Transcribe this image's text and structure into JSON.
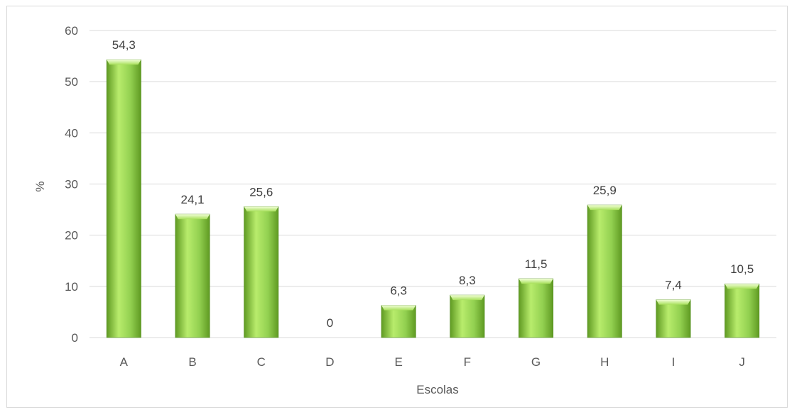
{
  "chart_data": {
    "type": "bar",
    "title": "",
    "xlabel": "Escolas",
    "ylabel": "%",
    "categories": [
      "A",
      "B",
      "C",
      "D",
      "E",
      "F",
      "G",
      "H",
      "I",
      "J"
    ],
    "values": [
      54.3,
      24.1,
      25.6,
      0,
      6.3,
      8.3,
      11.5,
      25.9,
      7.4,
      10.5
    ],
    "data_labels": [
      "54,3",
      "24,1",
      "25,6",
      "0",
      "6,3",
      "8,3",
      "11,5",
      "25,9",
      "7,4",
      "10,5"
    ],
    "ylim": [
      0,
      60
    ],
    "yticks": [
      0,
      10,
      20,
      30,
      40,
      50,
      60
    ],
    "grid": true,
    "legend": "none",
    "colors": {
      "bar_light": "#b8ec6c",
      "bar_mid": "#92d050",
      "bar_dark": "#5f9a22",
      "bar_edge": "#4f8a1b"
    }
  }
}
